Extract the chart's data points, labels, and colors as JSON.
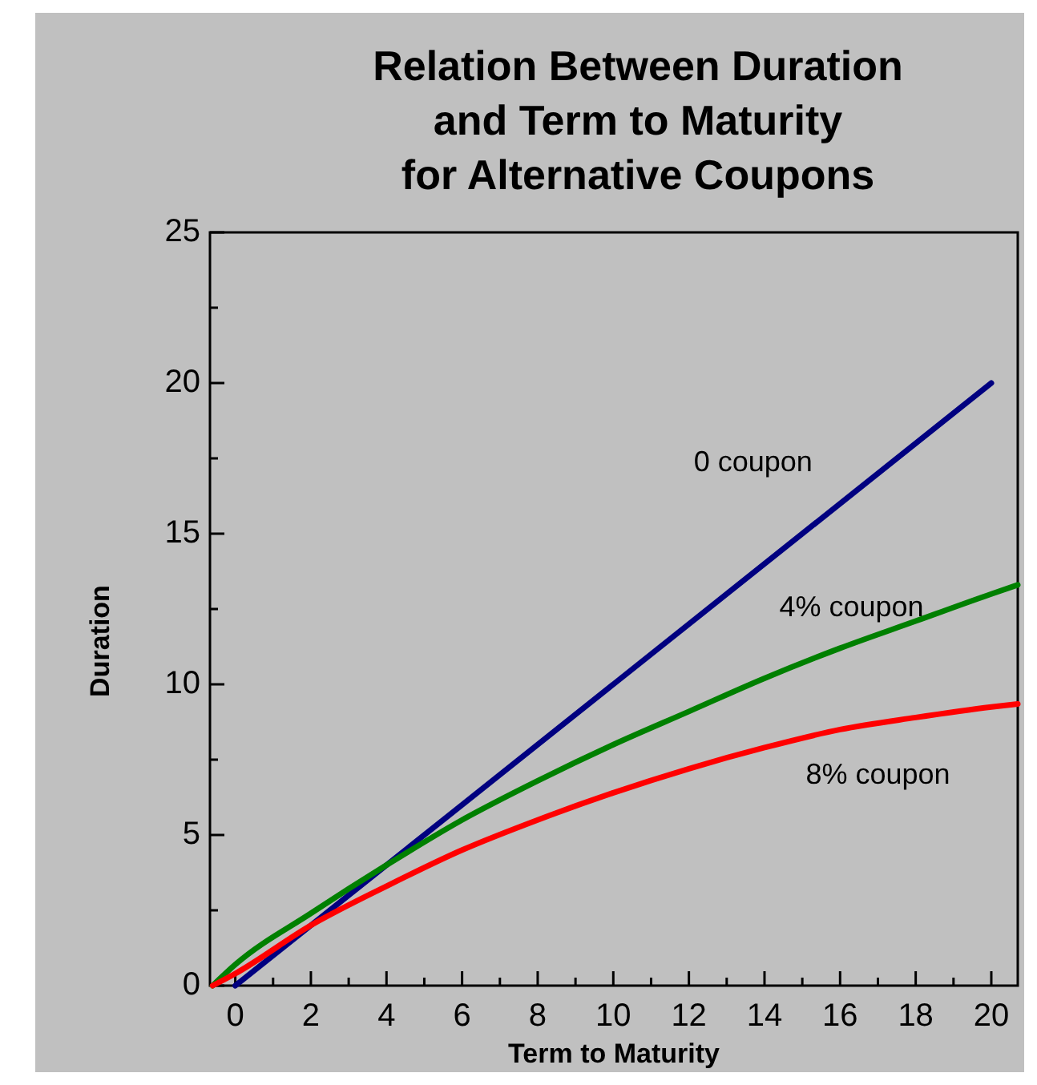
{
  "chart_data": {
    "type": "line",
    "title": "Relation Between Duration\nand Term to Maturity\nfor Alternative Coupons",
    "xlabel": "Term to Maturity",
    "ylabel": "Duration",
    "xlim": [
      -0.67,
      20.7
    ],
    "ylim": [
      0,
      25
    ],
    "xticks": [
      0,
      {
        "value": 1,
        "label": null
      },
      2,
      {
        "value": 3,
        "label": null
      },
      4,
      {
        "value": 5,
        "label": null
      },
      6,
      {
        "value": 7,
        "label": null
      },
      8,
      {
        "value": 9,
        "label": null
      },
      10,
      {
        "value": 11,
        "label": null
      },
      12,
      {
        "value": 13,
        "label": null
      },
      14,
      {
        "value": 15,
        "label": null
      },
      16,
      {
        "value": 17,
        "label": null
      },
      18,
      {
        "value": 19,
        "label": null
      },
      20
    ],
    "yticks": [
      0,
      {
        "value": 2.5,
        "label": null
      },
      5,
      {
        "value": 7.5,
        "label": null
      },
      10,
      {
        "value": 12.5,
        "label": null
      },
      15,
      {
        "value": 17.5,
        "label": null
      },
      20,
      {
        "value": 22.5,
        "label": null
      },
      25
    ],
    "grid": false,
    "marker": "none",
    "line_style": "solid",
    "series": [
      {
        "name": "0 coupon",
        "color": "#000080",
        "x": [
          0,
          20
        ],
        "values": [
          0,
          20
        ]
      },
      {
        "name": "4% coupon",
        "color": "#008000",
        "x": [
          -0.6,
          0,
          2,
          4,
          6,
          8,
          10,
          12,
          14,
          16,
          18,
          20,
          20.7
        ],
        "values": [
          0,
          0.7,
          2.4,
          4.0,
          5.5,
          6.8,
          8.0,
          9.1,
          10.2,
          11.2,
          12.1,
          13.0,
          13.3
        ]
      },
      {
        "name": "8% coupon",
        "color": "#ff0000",
        "x": [
          -0.6,
          0,
          2,
          4,
          6,
          8,
          10,
          12,
          14,
          16,
          18,
          20,
          20.7
        ],
        "values": [
          0,
          0.4,
          2.0,
          3.3,
          4.5,
          5.5,
          6.4,
          7.2,
          7.9,
          8.5,
          8.9,
          9.25,
          9.35
        ]
      }
    ]
  }
}
